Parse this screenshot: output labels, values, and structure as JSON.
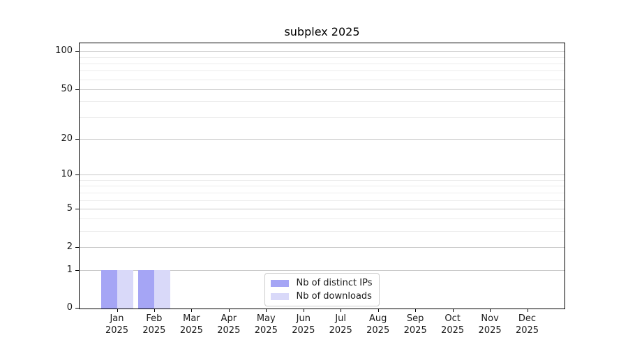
{
  "figure": {
    "background": "#ffffff"
  },
  "chart_data": {
    "type": "bar",
    "title": "subplex 2025",
    "categories": [
      "Jan 2025",
      "Feb 2025",
      "Mar 2025",
      "Apr 2025",
      "May 2025",
      "Jun 2025",
      "Jul 2025",
      "Aug 2025",
      "Sep 2025",
      "Oct 2025",
      "Nov 2025",
      "Dec 2025"
    ],
    "series": [
      {
        "name": "Nb of distinct IPs",
        "color": "#a5a5f5",
        "values": [
          1,
          1,
          0,
          0,
          0,
          0,
          0,
          0,
          0,
          0,
          0,
          0
        ]
      },
      {
        "name": "Nb of downloads",
        "color": "#d9d9f9",
        "values": [
          1,
          1,
          0,
          0,
          0,
          0,
          0,
          0,
          0,
          0,
          0,
          0
        ]
      }
    ],
    "xlabel": "",
    "ylabel": "",
    "yscale": "log1p",
    "ylim": [
      0,
      118
    ],
    "yticks": [
      0,
      1,
      2,
      5,
      10,
      20,
      50,
      100
    ],
    "minor_gridlines": [
      3,
      4,
      6,
      7,
      8,
      9,
      30,
      40,
      60,
      70,
      80,
      90
    ],
    "grid": true,
    "legend_position": "lower center",
    "colors": {
      "axis": "#000000",
      "text": "#1a1a1a",
      "grid_major": "#c9c9c9",
      "grid_minor": "#ececec",
      "legend_border": "#cccccc",
      "legend_background": "#ffffff"
    }
  }
}
